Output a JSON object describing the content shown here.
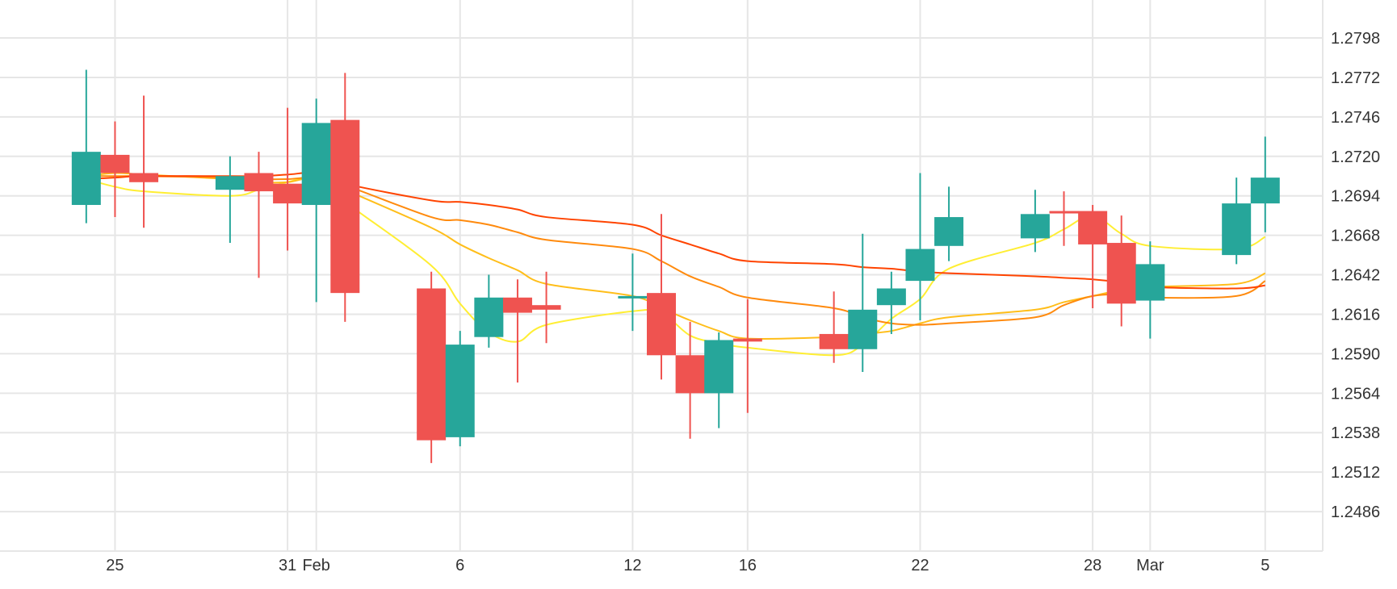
{
  "chart_data": {
    "type": "candlestick",
    "x_tick_labels": [
      {
        "date": "2024-01-25",
        "label": "25"
      },
      {
        "date": "2024-01-31",
        "label": "31"
      },
      {
        "date": "2024-02-01",
        "label": "Feb"
      },
      {
        "date": "2024-02-06",
        "label": "6"
      },
      {
        "date": "2024-02-12",
        "label": "12"
      },
      {
        "date": "2024-02-16",
        "label": "16"
      },
      {
        "date": "2024-02-22",
        "label": "22"
      },
      {
        "date": "2024-02-28",
        "label": "28"
      },
      {
        "date": "2024-03-01",
        "label": "Mar"
      },
      {
        "date": "2024-03-05",
        "label": "5"
      }
    ],
    "y_ticks": [
      "1.2798",
      "1.2772",
      "1.2746",
      "1.2720",
      "1.2694",
      "1.2668",
      "1.2642",
      "1.2616",
      "1.2590",
      "1.2564",
      "1.2538",
      "1.2512",
      "1.2486"
    ],
    "ylim": [
      1.246,
      1.2823
    ],
    "xlim": [
      "2024-01-21",
      "2024-03-07"
    ],
    "grid": true,
    "colors": {
      "up": "#26a69a",
      "down": "#ef5350",
      "grid": "#e6e6e6",
      "axis_text": "#333333"
    },
    "candles": [
      {
        "date": "2024-01-24",
        "open": 1.2688,
        "high": 1.2777,
        "low": 1.2676,
        "close": 1.2723
      },
      {
        "date": "2024-01-25",
        "open": 1.2721,
        "high": 1.2743,
        "low": 1.268,
        "close": 1.2709
      },
      {
        "date": "2024-01-26",
        "open": 1.2709,
        "high": 1.276,
        "low": 1.2673,
        "close": 1.2703
      },
      {
        "date": "2024-01-29",
        "open": 1.2698,
        "high": 1.272,
        "low": 1.2663,
        "close": 1.2707
      },
      {
        "date": "2024-01-30",
        "open": 1.2709,
        "high": 1.2723,
        "low": 1.264,
        "close": 1.2697
      },
      {
        "date": "2024-01-31",
        "open": 1.2702,
        "high": 1.2752,
        "low": 1.2658,
        "close": 1.2689
      },
      {
        "date": "2024-02-01",
        "open": 1.2688,
        "high": 1.2758,
        "low": 1.2624,
        "close": 1.2742
      },
      {
        "date": "2024-02-02",
        "open": 1.2744,
        "high": 1.2775,
        "low": 1.2611,
        "close": 1.263
      },
      {
        "date": "2024-02-05",
        "open": 1.2633,
        "high": 1.2644,
        "low": 1.2518,
        "close": 1.2533
      },
      {
        "date": "2024-02-06",
        "open": 1.2535,
        "high": 1.2605,
        "low": 1.2529,
        "close": 1.2596
      },
      {
        "date": "2024-02-07",
        "open": 1.2601,
        "high": 1.2642,
        "low": 1.2594,
        "close": 1.2627
      },
      {
        "date": "2024-02-08",
        "open": 1.2627,
        "high": 1.2639,
        "low": 1.2571,
        "close": 1.2617
      },
      {
        "date": "2024-02-09",
        "open": 1.2622,
        "high": 1.2644,
        "low": 1.2597,
        "close": 1.2619
      },
      {
        "date": "2024-02-12",
        "open": 1.2627,
        "high": 1.2656,
        "low": 1.2605,
        "close": 1.2628
      },
      {
        "date": "2024-02-13",
        "open": 1.263,
        "high": 1.2682,
        "low": 1.2573,
        "close": 1.2589
      },
      {
        "date": "2024-02-14",
        "open": 1.2589,
        "high": 1.2611,
        "low": 1.2534,
        "close": 1.2564
      },
      {
        "date": "2024-02-15",
        "open": 1.2564,
        "high": 1.2604,
        "low": 1.2541,
        "close": 1.2599
      },
      {
        "date": "2024-02-16",
        "open": 1.26,
        "high": 1.2626,
        "low": 1.2551,
        "close": 1.2598
      },
      {
        "date": "2024-02-19",
        "open": 1.2603,
        "high": 1.2631,
        "low": 1.2584,
        "close": 1.2593
      },
      {
        "date": "2024-02-20",
        "open": 1.2593,
        "high": 1.2669,
        "low": 1.2578,
        "close": 1.2619
      },
      {
        "date": "2024-02-21",
        "open": 1.2622,
        "high": 1.2644,
        "low": 1.2603,
        "close": 1.2633
      },
      {
        "date": "2024-02-22",
        "open": 1.2638,
        "high": 1.2709,
        "low": 1.2612,
        "close": 1.2659
      },
      {
        "date": "2024-02-23",
        "open": 1.2661,
        "high": 1.27,
        "low": 1.2651,
        "close": 1.268
      },
      {
        "date": "2024-02-26",
        "open": 1.2666,
        "high": 1.2698,
        "low": 1.2657,
        "close": 1.2682
      },
      {
        "date": "2024-02-27",
        "open": 1.2684,
        "high": 1.2697,
        "low": 1.2661,
        "close": 1.2683
      },
      {
        "date": "2024-02-28",
        "open": 1.2684,
        "high": 1.2688,
        "low": 1.262,
        "close": 1.2662
      },
      {
        "date": "2024-02-29",
        "open": 1.2663,
        "high": 1.2681,
        "low": 1.2608,
        "close": 1.2623
      },
      {
        "date": "2024-03-01",
        "open": 1.2625,
        "high": 1.2664,
        "low": 1.26,
        "close": 1.2649
      },
      {
        "date": "2024-03-04",
        "open": 1.2655,
        "high": 1.2706,
        "low": 1.2649,
        "close": 1.2689
      },
      {
        "date": "2024-03-05",
        "open": 1.2689,
        "high": 1.2733,
        "low": 1.267,
        "close": 1.2706
      }
    ],
    "moving_averages": [
      {
        "color": "#ffee33",
        "values": [
          1.2705,
          1.27,
          1.2697,
          1.2694,
          1.2698,
          1.2703,
          1.2706,
          1.269,
          1.2648,
          1.2623,
          1.2604,
          1.2598,
          1.2609,
          1.2618,
          1.2617,
          1.2602,
          1.2597,
          1.2594,
          1.2589,
          1.2596,
          1.2613,
          1.2626,
          1.2646,
          1.2663,
          1.2672,
          1.2681,
          1.2669,
          1.2661,
          1.2659,
          1.2667
        ]
      },
      {
        "color": "#ffbe1a",
        "values": [
          1.2707,
          1.2709,
          1.2708,
          1.2705,
          1.2703,
          1.2703,
          1.2706,
          1.2698,
          1.2673,
          1.2662,
          1.2653,
          1.2645,
          1.2636,
          1.2628,
          1.262,
          1.2612,
          1.2605,
          1.26,
          1.2601,
          1.2603,
          1.2605,
          1.261,
          1.2614,
          1.2619,
          1.2624,
          1.2628,
          1.2632,
          1.2634,
          1.2636,
          1.2643
        ]
      },
      {
        "color": "#ff8a0d",
        "values": [
          1.2707,
          1.2707,
          1.2707,
          1.2706,
          1.2705,
          1.2705,
          1.2706,
          1.2701,
          1.268,
          1.2678,
          1.2675,
          1.267,
          1.2665,
          1.2659,
          1.2651,
          1.2641,
          1.2634,
          1.2627,
          1.262,
          1.2614,
          1.261,
          1.2609,
          1.261,
          1.2614,
          1.2622,
          1.2628,
          1.2629,
          1.2627,
          1.2628,
          1.2638
        ]
      },
      {
        "color": "#ff4400",
        "values": [
          1.2705,
          1.2706,
          1.2707,
          1.2707,
          1.2707,
          1.2708,
          1.2709,
          1.2702,
          1.2691,
          1.269,
          1.2688,
          1.2685,
          1.268,
          1.2675,
          1.2668,
          1.2662,
          1.2656,
          1.2651,
          1.2649,
          1.2647,
          1.2646,
          1.2644,
          1.2643,
          1.2641,
          1.264,
          1.2639,
          1.2637,
          1.2634,
          1.2633,
          1.2635
        ]
      }
    ]
  }
}
